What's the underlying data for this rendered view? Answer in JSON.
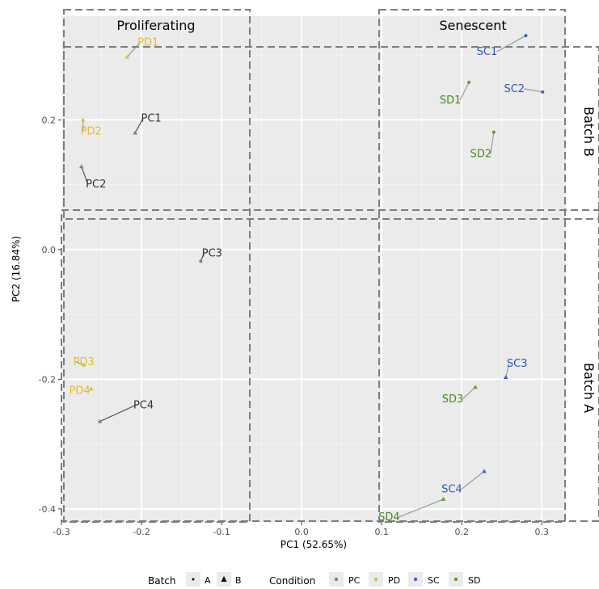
{
  "chart_data": {
    "type": "scatter",
    "xlabel": "PC1 (52.65%)",
    "ylabel": "PC2 (16.84%)",
    "xlim": [
      -0.3,
      0.33
    ],
    "ylim": [
      -0.42,
      0.36
    ],
    "xticks": [
      -0.3,
      -0.2,
      -0.1,
      0.0,
      0.1,
      0.2,
      0.3
    ],
    "xtick_labels": [
      "-0.3",
      "-0.2",
      "-0.1",
      "0.0",
      "0.1",
      "0.2",
      "0.3"
    ],
    "yticks": [
      -0.4,
      -0.2,
      0.0,
      0.2
    ],
    "ytick_labels": [
      "-0.4",
      "-0.2",
      "0.0",
      "0.2"
    ],
    "grid": true,
    "colors": {
      "PC": "#7f7f7f",
      "PD": "#d6c24a",
      "SC": "#3a62c4",
      "SD": "#5ea030"
    },
    "label_colors": {
      "PC": "#333333",
      "PD": "#e0bf2a",
      "SC": "#2e56b0",
      "SD": "#4a8a1e"
    },
    "points": [
      {
        "label": "PD1",
        "x": -0.218,
        "y": 0.297,
        "condition": "PD",
        "batch": "B"
      },
      {
        "label": "PC1",
        "x": -0.208,
        "y": 0.18,
        "condition": "PC",
        "batch": "B"
      },
      {
        "label": "PD2",
        "x": -0.273,
        "y": 0.2,
        "condition": "PD",
        "batch": "B"
      },
      {
        "label": "PC2",
        "x": -0.275,
        "y": 0.128,
        "condition": "PC",
        "batch": "B"
      },
      {
        "label": "PC3",
        "x": -0.126,
        "y": -0.018,
        "condition": "PC",
        "batch": "A"
      },
      {
        "label": "PD3",
        "x": -0.272,
        "y": -0.178,
        "condition": "PD",
        "batch": "B"
      },
      {
        "label": "PD4",
        "x": -0.263,
        "y": -0.215,
        "condition": "PD",
        "batch": "B"
      },
      {
        "label": "PC4",
        "x": -0.252,
        "y": -0.265,
        "condition": "PC",
        "batch": "B"
      },
      {
        "label": "SC1",
        "x": 0.28,
        "y": 0.33,
        "condition": "SC",
        "batch": "A"
      },
      {
        "label": "SC2",
        "x": 0.301,
        "y": 0.243,
        "condition": "SC",
        "batch": "A"
      },
      {
        "label": "SD1",
        "x": 0.209,
        "y": 0.258,
        "condition": "SD",
        "batch": "A"
      },
      {
        "label": "SD2",
        "x": 0.24,
        "y": 0.181,
        "condition": "SD",
        "batch": "A"
      },
      {
        "label": "SC3",
        "x": 0.255,
        "y": -0.197,
        "condition": "SC",
        "batch": "B"
      },
      {
        "label": "SD3",
        "x": 0.217,
        "y": -0.212,
        "condition": "SD",
        "batch": "B"
      },
      {
        "label": "SC4",
        "x": 0.228,
        "y": -0.342,
        "condition": "SC",
        "batch": "B"
      },
      {
        "label": "SD4",
        "x": 0.177,
        "y": -0.385,
        "condition": "SD",
        "batch": "B"
      }
    ],
    "regions": {
      "columns": [
        "Proliferating",
        "Senescent"
      ],
      "rows": [
        "Batch B",
        "Batch A"
      ]
    },
    "legend": {
      "batch_title": "Batch",
      "batch_items": [
        "A",
        "B"
      ],
      "condition_title": "Condition",
      "condition_items": [
        "PC",
        "PD",
        "SC",
        "SD"
      ],
      "position": "bottom"
    }
  }
}
